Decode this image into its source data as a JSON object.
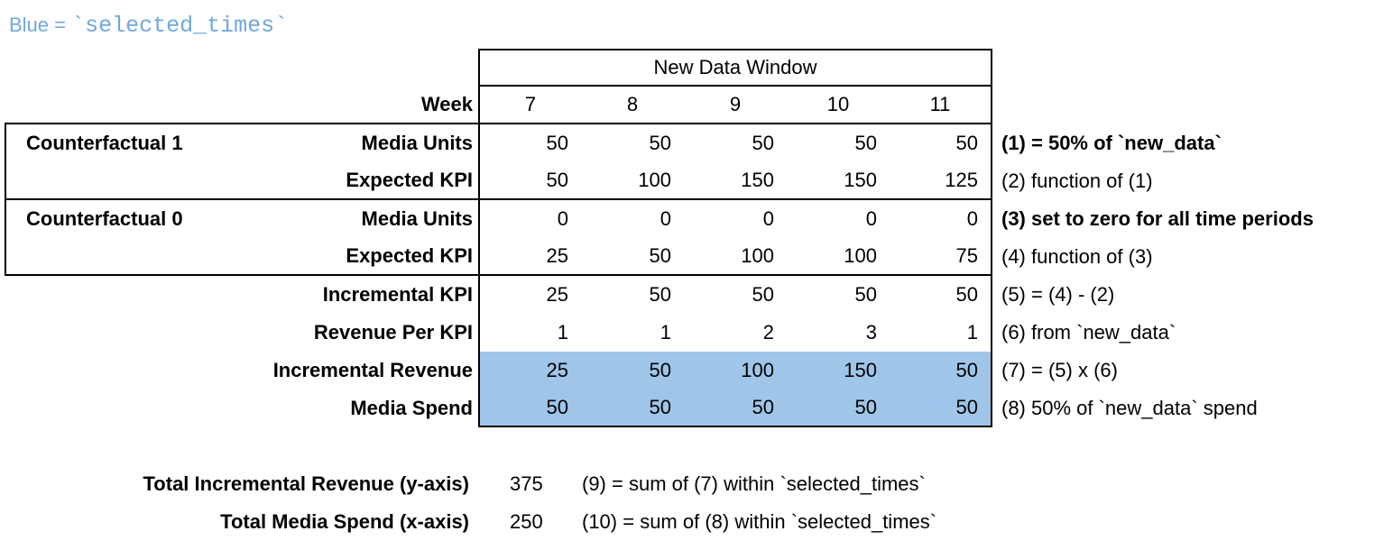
{
  "legend": {
    "prefix": "Blue = ",
    "code": "`selected_times`"
  },
  "table": {
    "window_title": "New Data Window",
    "week_label": "Week",
    "weeks": [
      "7",
      "8",
      "9",
      "10",
      "11"
    ],
    "groups": {
      "cf1": "Counterfactual 1",
      "cf0": "Counterfactual 0"
    },
    "rows": [
      {
        "label": "Media Units",
        "values": [
          "50",
          "50",
          "50",
          "50",
          "50"
        ],
        "note": "(1) = 50% of `new_data`",
        "note_bold": true,
        "highlight": false
      },
      {
        "label": "Expected KPI",
        "values": [
          "50",
          "100",
          "150",
          "150",
          "125"
        ],
        "note": "(2) function of (1)",
        "note_bold": false,
        "highlight": false
      },
      {
        "label": "Media Units",
        "values": [
          "0",
          "0",
          "0",
          "0",
          "0"
        ],
        "note": "(3) set to zero for all time periods",
        "note_bold": true,
        "highlight": false
      },
      {
        "label": "Expected KPI",
        "values": [
          "25",
          "50",
          "100",
          "100",
          "75"
        ],
        "note": "(4) function of (3)",
        "note_bold": false,
        "highlight": false
      },
      {
        "label": "Incremental KPI",
        "values": [
          "25",
          "50",
          "50",
          "50",
          "50"
        ],
        "note": "(5) = (4) - (2)",
        "note_bold": false,
        "highlight": false
      },
      {
        "label": "Revenue Per KPI",
        "values": [
          "1",
          "1",
          "2",
          "3",
          "1"
        ],
        "note": "(6) from `new_data`",
        "note_bold": false,
        "highlight": false
      },
      {
        "label": "Incremental Revenue",
        "values": [
          "25",
          "50",
          "100",
          "150",
          "50"
        ],
        "note": "(7) = (5) x (6)",
        "note_bold": false,
        "highlight": true
      },
      {
        "label": "Media Spend",
        "values": [
          "50",
          "50",
          "50",
          "50",
          "50"
        ],
        "note": "(8) 50% of `new_data` spend",
        "note_bold": false,
        "highlight": true
      }
    ]
  },
  "totals": [
    {
      "label": "Total Incremental Revenue (y-axis)",
      "value": "375",
      "note": "(9) = sum of (7) within `selected_times`"
    },
    {
      "label": "Total Media Spend (x-axis)",
      "value": "250",
      "note": "(10) = sum of (8) within `selected_times`"
    }
  ],
  "colors": {
    "highlight": "#9FC5E8",
    "legend_blue": "#6FA8DC",
    "border": "#000000"
  }
}
